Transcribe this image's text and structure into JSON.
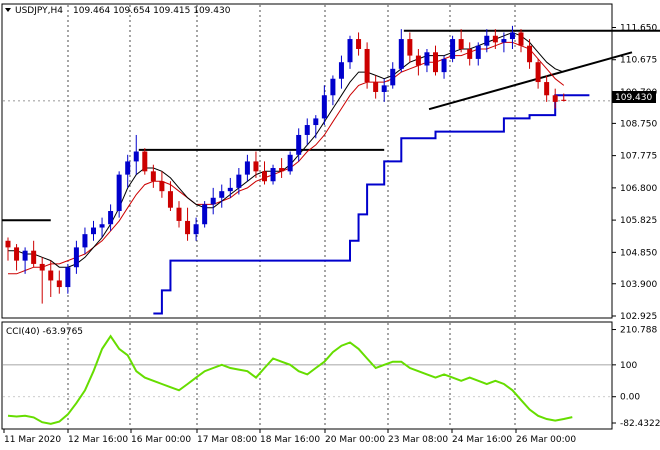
{
  "chart_data": [
    {
      "type": "candlestick",
      "title": "USDJPY,H4",
      "ohlc_header": "109.464 109.654 109.415 109.430",
      "price_tag": "109.430",
      "ylim": [
        102.925,
        112.3
      ],
      "y_ticks": [
        "111.650",
        "110.675",
        "109.700",
        "108.750",
        "107.775",
        "106.800",
        "105.825",
        "104.850",
        "103.900",
        "102.925"
      ],
      "x_labels": [
        "11 Mar 2020",
        "12 Mar 16:00",
        "16 Mar 00:00",
        "17 Mar 08:00",
        "18 Mar 16:00",
        "20 Mar 00:00",
        "23 Mar 08:00",
        "24 Mar 16:00",
        "26 Mar 00:00"
      ],
      "candles": [
        [
          105.2,
          105.3,
          104.6,
          105.0
        ],
        [
          105.0,
          105.1,
          104.3,
          104.6
        ],
        [
          104.6,
          105.0,
          104.2,
          104.9
        ],
        [
          104.9,
          105.2,
          104.4,
          104.5
        ],
        [
          104.5,
          104.7,
          103.3,
          104.3
        ],
        [
          104.3,
          104.6,
          103.5,
          104.0
        ],
        [
          104.0,
          104.3,
          103.6,
          103.8
        ],
        [
          103.8,
          104.5,
          103.6,
          104.4
        ],
        [
          104.4,
          105.2,
          104.2,
          105.0
        ],
        [
          105.0,
          105.6,
          104.8,
          105.4
        ],
        [
          105.4,
          105.8,
          105.2,
          105.6
        ],
        [
          105.6,
          105.9,
          105.3,
          105.7
        ],
        [
          105.7,
          106.3,
          105.5,
          106.1
        ],
        [
          106.1,
          107.3,
          105.9,
          107.2
        ],
        [
          107.2,
          107.8,
          106.8,
          107.6
        ],
        [
          107.6,
          108.4,
          107.2,
          107.9
        ],
        [
          107.9,
          108.0,
          107.2,
          107.3
        ],
        [
          107.3,
          107.5,
          106.8,
          107.0
        ],
        [
          107.0,
          107.3,
          106.5,
          106.7
        ],
        [
          106.7,
          107.0,
          106.1,
          106.2
        ],
        [
          106.2,
          106.4,
          105.6,
          105.8
        ],
        [
          105.8,
          106.2,
          105.2,
          105.4
        ],
        [
          105.4,
          105.9,
          105.2,
          105.7
        ],
        [
          105.7,
          106.4,
          105.6,
          106.3
        ],
        [
          106.3,
          106.8,
          106.0,
          106.5
        ],
        [
          106.5,
          106.9,
          106.2,
          106.7
        ],
        [
          106.7,
          107.1,
          106.5,
          106.8
        ],
        [
          106.8,
          107.4,
          106.6,
          107.2
        ],
        [
          107.2,
          107.8,
          107.0,
          107.6
        ],
        [
          107.6,
          107.9,
          107.1,
          107.3
        ],
        [
          107.3,
          107.6,
          106.9,
          107.0
        ],
        [
          107.0,
          107.5,
          106.9,
          107.4
        ],
        [
          107.4,
          107.7,
          107.1,
          107.3
        ],
        [
          107.3,
          107.9,
          107.2,
          107.8
        ],
        [
          107.8,
          108.6,
          107.6,
          108.4
        ],
        [
          108.4,
          108.9,
          108.1,
          108.7
        ],
        [
          108.7,
          109.0,
          108.3,
          108.9
        ],
        [
          108.9,
          109.9,
          108.7,
          109.6
        ],
        [
          109.6,
          110.2,
          109.3,
          110.1
        ],
        [
          110.1,
          110.8,
          109.8,
          110.6
        ],
        [
          110.6,
          111.4,
          110.4,
          111.3
        ],
        [
          111.3,
          111.5,
          110.8,
          111.0
        ],
        [
          111.0,
          111.2,
          109.8,
          110.0
        ],
        [
          110.0,
          110.2,
          109.5,
          109.7
        ],
        [
          109.7,
          110.1,
          109.4,
          109.9
        ],
        [
          109.9,
          110.6,
          109.8,
          110.4
        ],
        [
          110.4,
          111.6,
          110.3,
          111.3
        ],
        [
          111.3,
          111.5,
          110.6,
          110.8
        ],
        [
          110.8,
          111.0,
          110.2,
          110.5
        ],
        [
          110.5,
          111.0,
          110.3,
          110.9
        ],
        [
          110.9,
          111.1,
          110.2,
          110.3
        ],
        [
          110.3,
          110.8,
          110.1,
          110.7
        ],
        [
          110.7,
          111.4,
          110.6,
          111.3
        ],
        [
          111.3,
          111.6,
          110.9,
          111.0
        ],
        [
          111.0,
          111.2,
          110.5,
          110.7
        ],
        [
          110.7,
          111.2,
          110.5,
          111.1
        ],
        [
          111.1,
          111.6,
          110.9,
          111.4
        ],
        [
          111.4,
          111.6,
          111.0,
          111.2
        ],
        [
          111.2,
          111.5,
          110.9,
          111.3
        ],
        [
          111.3,
          111.7,
          111.0,
          111.5
        ],
        [
          111.5,
          111.6,
          110.9,
          111.1
        ],
        [
          111.1,
          111.3,
          110.4,
          110.6
        ],
        [
          110.6,
          110.7,
          109.8,
          110.0
        ],
        [
          110.0,
          110.2,
          109.4,
          109.6
        ],
        [
          109.6,
          109.8,
          109.2,
          109.4
        ],
        [
          109.464,
          109.654,
          109.415,
          109.43
        ]
      ],
      "ma_black": [
        104.9,
        104.9,
        104.8,
        104.8,
        104.7,
        104.6,
        104.4,
        104.4,
        104.5,
        104.7,
        105.0,
        105.3,
        105.7,
        106.2,
        106.8,
        107.2,
        107.4,
        107.4,
        107.3,
        107.1,
        106.8,
        106.5,
        106.3,
        106.2,
        106.2,
        106.4,
        106.6,
        106.8,
        107.0,
        107.2,
        107.3,
        107.3,
        107.3,
        107.5,
        107.8,
        108.1,
        108.4,
        108.8,
        109.2,
        109.6,
        110.0,
        110.3,
        110.3,
        110.2,
        110.1,
        110.2,
        110.4,
        110.6,
        110.7,
        110.8,
        110.8,
        110.8,
        110.9,
        111.0,
        111.0,
        111.1,
        111.2,
        111.3,
        111.4,
        111.5,
        111.4,
        111.2,
        110.9,
        110.6,
        110.4,
        110.3
      ],
      "ma_red": [
        104.2,
        104.2,
        104.3,
        104.4,
        104.4,
        104.5,
        104.5,
        104.6,
        104.7,
        104.8,
        105.0,
        105.2,
        105.5,
        105.8,
        106.2,
        106.6,
        106.9,
        107.0,
        107.0,
        106.9,
        106.7,
        106.5,
        106.3,
        106.3,
        106.3,
        106.4,
        106.5,
        106.7,
        106.8,
        107.0,
        107.1,
        107.2,
        107.3,
        107.4,
        107.6,
        107.9,
        108.1,
        108.4,
        108.8,
        109.2,
        109.6,
        109.9,
        110.0,
        110.0,
        110.0,
        110.1,
        110.3,
        110.4,
        110.5,
        110.6,
        110.6,
        110.7,
        110.8,
        110.8,
        110.9,
        111.0,
        111.0,
        111.1,
        111.2,
        111.2,
        111.1,
        111.0,
        110.7,
        110.4,
        110.1,
        109.9
      ],
      "channel_blue": [
        null,
        null,
        null,
        null,
        null,
        null,
        null,
        null,
        null,
        null,
        null,
        null,
        null,
        null,
        null,
        null,
        null,
        103.0,
        103.7,
        104.6,
        104.6,
        104.6,
        104.6,
        104.6,
        104.6,
        104.6,
        104.6,
        104.6,
        104.6,
        104.6,
        104.6,
        104.6,
        104.6,
        104.6,
        104.6,
        104.6,
        104.6,
        104.6,
        104.6,
        104.6,
        105.2,
        106.0,
        106.9,
        106.9,
        107.6,
        107.6,
        108.3,
        108.3,
        108.3,
        108.3,
        108.5,
        108.5,
        108.5,
        108.5,
        108.5,
        108.5,
        108.5,
        108.5,
        108.9,
        108.9,
        108.9,
        109.0,
        109.0,
        109.0,
        109.6,
        109.6,
        109.6,
        109.6,
        109.6
      ],
      "hlines": [
        [
          0,
          5,
          105.82
        ],
        [
          16,
          44,
          107.95
        ],
        [
          47,
          84,
          111.55
        ]
      ],
      "trendline": [
        [
          51,
          109.3
        ],
        [
          80,
          110.9
        ]
      ]
    },
    {
      "type": "line",
      "indicator_label": "CCI(40) -63.9765",
      "y_ticks": [
        "210.788",
        "100",
        "0.00",
        "-82.4322"
      ],
      "ylim": [
        -95,
        225
      ],
      "values": [
        -60,
        -62,
        -60,
        -65,
        -80,
        -85,
        -78,
        -55,
        -20,
        20,
        80,
        150,
        190,
        150,
        130,
        80,
        60,
        50,
        40,
        30,
        20,
        40,
        60,
        80,
        90,
        100,
        90,
        85,
        80,
        60,
        90,
        120,
        110,
        100,
        80,
        70,
        90,
        110,
        140,
        160,
        170,
        150,
        120,
        90,
        100,
        110,
        110,
        90,
        80,
        70,
        60,
        70,
        60,
        50,
        60,
        50,
        40,
        50,
        40,
        20,
        -10,
        -40,
        -60,
        -70,
        -75,
        -70,
        -64
      ]
    }
  ]
}
